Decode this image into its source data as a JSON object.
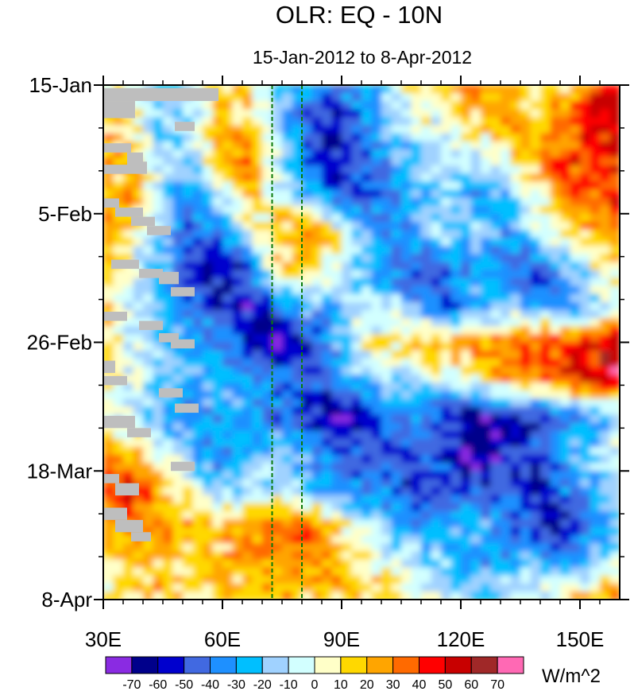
{
  "chart_data": {
    "type": "heatmap",
    "title": "OLR: EQ - 10N",
    "subtitle": "15-Jan-2012 to 8-Apr-2012",
    "units_label": "W/m^2",
    "x_axis": {
      "range": [
        30,
        160
      ],
      "ticks": [
        30,
        60,
        90,
        120,
        150
      ],
      "tick_labels": [
        "30E",
        "60E",
        "90E",
        "120E",
        "150E"
      ]
    },
    "y_axis": {
      "range_days": [
        0,
        84
      ],
      "ticks_days": [
        0,
        21,
        42,
        63,
        84
      ],
      "tick_labels": [
        "15-Jan",
        "5-Feb",
        "26-Feb",
        "18-Mar",
        "8-Apr"
      ],
      "reversed": true
    },
    "reference_lines_lon": [
      72.5,
      80
    ],
    "colorbar": {
      "levels": [
        "-70",
        "-60",
        "-50",
        "-40",
        "-30",
        "-20",
        "-10",
        "0",
        "10",
        "20",
        "30",
        "40",
        "50",
        "60",
        "70"
      ],
      "colors": [
        "#8a2be2",
        "#00008b",
        "#0000cd",
        "#4169e1",
        "#1e90ff",
        "#00bfff",
        "#a0d2ff",
        "#d2ffff",
        "#ffffc8",
        "#ffd800",
        "#ffa500",
        "#ff6a00",
        "#ff0000",
        "#c80000",
        "#a02828",
        "#ff69b4"
      ]
    },
    "missing_color": "#bebebe",
    "field": [
      [
        10,
        0,
        -30,
        -10,
        10,
        10,
        -20,
        -30,
        -40,
        -30,
        -10,
        10,
        20,
        30,
        20,
        10,
        10,
        40,
        60
      ],
      [
        20,
        10,
        -20,
        -10,
        15,
        20,
        -10,
        -50,
        -60,
        -40,
        -20,
        0,
        0,
        10,
        30,
        20,
        30,
        50,
        50
      ],
      [
        20,
        20,
        -10,
        -20,
        20,
        30,
        -10,
        -40,
        -60,
        -50,
        -30,
        -20,
        -10,
        -10,
        0,
        20,
        40,
        40,
        40
      ],
      [
        20,
        25,
        -10,
        -30,
        -10,
        20,
        0,
        -20,
        -40,
        -50,
        -40,
        -20,
        -20,
        -30,
        -20,
        0,
        30,
        40,
        50
      ],
      [
        25,
        10,
        -20,
        -50,
        -40,
        -10,
        20,
        30,
        10,
        -20,
        -40,
        -30,
        -10,
        -20,
        -30,
        -10,
        10,
        20,
        30
      ],
      [
        20,
        0,
        -20,
        -50,
        -60,
        -50,
        10,
        20,
        0,
        -20,
        -40,
        -50,
        -40,
        -30,
        -40,
        -50,
        -30,
        0,
        10
      ],
      [
        15,
        -10,
        -20,
        -40,
        -50,
        -60,
        -50,
        -20,
        -30,
        -10,
        -10,
        -30,
        -50,
        -30,
        -20,
        -30,
        -40,
        -20,
        0
      ],
      [
        15,
        -10,
        -20,
        -30,
        -40,
        -50,
        -70,
        -60,
        -30,
        0,
        10,
        20,
        20,
        30,
        30,
        40,
        40,
        50,
        60
      ],
      [
        10,
        0,
        -20,
        -30,
        -20,
        -30,
        -40,
        -50,
        -40,
        -20,
        -10,
        -10,
        0,
        10,
        20,
        30,
        40,
        50,
        60
      ],
      [
        0,
        -10,
        -30,
        -40,
        -30,
        -30,
        -40,
        -50,
        -70,
        -60,
        -40,
        -40,
        -50,
        -70,
        -60,
        -50,
        -40,
        -30,
        -20
      ],
      [
        30,
        20,
        0,
        -20,
        -40,
        -30,
        -20,
        -30,
        -40,
        -50,
        -50,
        -40,
        -50,
        -70,
        -60,
        -50,
        -30,
        -20,
        0
      ],
      [
        40,
        50,
        20,
        0,
        -20,
        -10,
        -10,
        -20,
        -30,
        -40,
        -40,
        -60,
        -50,
        -50,
        -40,
        -60,
        -40,
        -30,
        -10
      ],
      [
        20,
        30,
        30,
        20,
        20,
        30,
        30,
        40,
        20,
        -10,
        -20,
        -30,
        -30,
        -20,
        -40,
        -50,
        -60,
        -40,
        -20
      ],
      [
        10,
        20,
        20,
        10,
        20,
        20,
        30,
        30,
        20,
        10,
        0,
        -10,
        -20,
        -30,
        -30,
        -20,
        -30,
        -20,
        0
      ],
      [
        10,
        10,
        20,
        10,
        20,
        10,
        20,
        20,
        20,
        20,
        10,
        0,
        -10,
        -20,
        -10,
        0,
        10,
        20,
        30
      ]
    ]
  }
}
